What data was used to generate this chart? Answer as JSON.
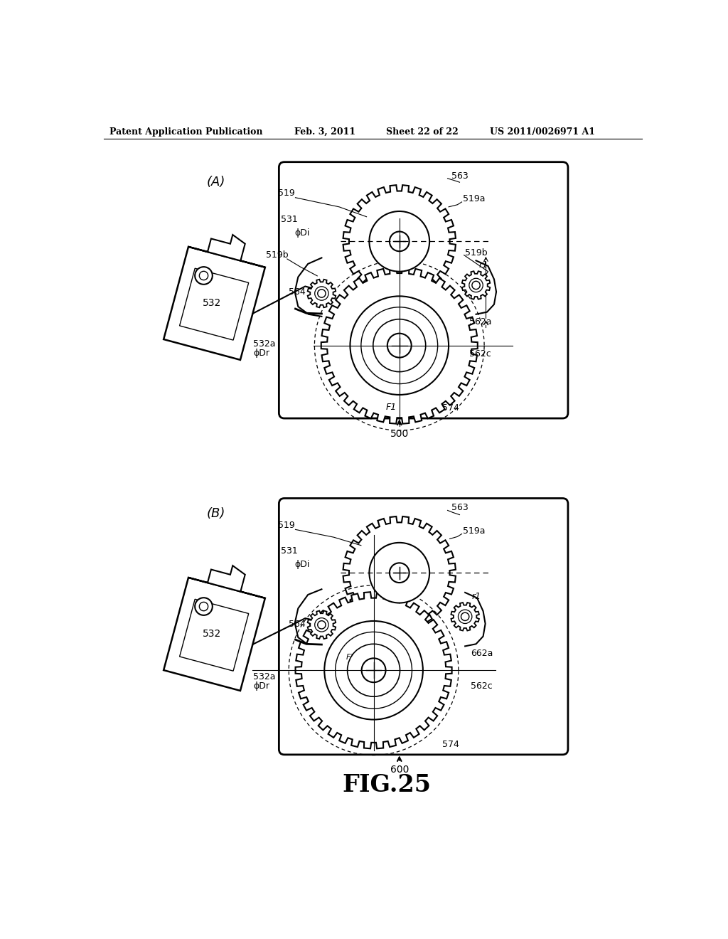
{
  "title_line1": "Patent Application Publication",
  "title_line2": "Feb. 3, 2011",
  "title_line3": "Sheet 22 of 22",
  "title_line4": "US 2011/0026971 A1",
  "fig_label": "FIG.25",
  "background_color": "#ffffff",
  "line_color": "#000000",
  "diagram_A_label": "(A)",
  "diagram_B_label": "(B)",
  "label_500": "500",
  "label_600": "600"
}
